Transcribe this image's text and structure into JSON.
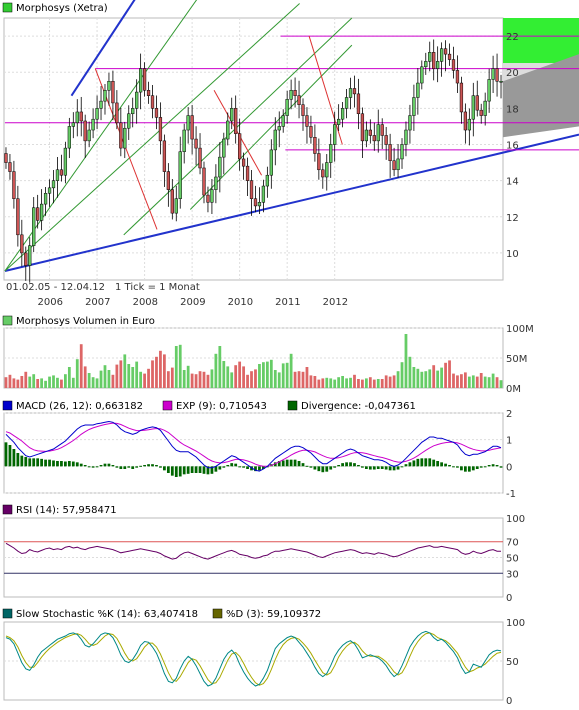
{
  "price_panel": {
    "title": "Morphosys (Xetra)",
    "legend_color": "#33cc33",
    "date_range": "01.02.05 - 12.04.12",
    "tick_note": "1 Tick = 1 Monat",
    "y_ticks": [
      10,
      12,
      14,
      16,
      18,
      20,
      22
    ],
    "x_labels": [
      "2006",
      "2007",
      "2008",
      "2009",
      "2010",
      "2011",
      "2012"
    ],
    "up_color": "#66cc66",
    "down_color": "#cc5555"
  },
  "volume_panel": {
    "title": "Morphosys Volumen in Euro",
    "y_ticks": [
      "100M",
      "50M",
      "0M"
    ]
  },
  "macd_panel": {
    "macd_label": "MACD (26, 12): 0,663182",
    "exp_label": "EXP (9): 0,710543",
    "div_label": "Divergence: -0,047361",
    "macd_color": "#0000cc",
    "exp_color": "#cc00cc",
    "div_color": "#006600",
    "y_ticks": [
      "2",
      "1",
      "0",
      "-1"
    ]
  },
  "rsi_panel": {
    "title": "RSI (14): 57,958471",
    "color": "#660066",
    "y_ticks": [
      "100",
      "70",
      "50",
      "30",
      "0"
    ]
  },
  "stoch_panel": {
    "k_label": "Slow Stochastic %K (14): 63,407418",
    "d_label": "%D (3): 59,109372",
    "k_color": "#006666",
    "d_color": "#666600",
    "y_ticks": [
      "100",
      "50",
      "0"
    ]
  },
  "chart_data": [
    {
      "type": "candlestick",
      "title": "Morphosys (Xetra)",
      "x_range": [
        "2005-02",
        "2012-04"
      ],
      "x_labels": [
        "2006",
        "2007",
        "2008",
        "2009",
        "2010",
        "2011",
        "2012"
      ],
      "ylim": [
        8.5,
        23
      ],
      "close": [
        15,
        14.5,
        13,
        11,
        10,
        9.3,
        10.4,
        12.5,
        11.8,
        12.7,
        13.3,
        13.6,
        14,
        14.6,
        14.3,
        15.8,
        17,
        17.2,
        17.8,
        17.3,
        16.2,
        16.8,
        17.4,
        18,
        18.4,
        19,
        19.5,
        18.3,
        17.2,
        15.8,
        16.9,
        17.7,
        18,
        18.9,
        20.2,
        19,
        18.7,
        18,
        17.5,
        16.2,
        14.5,
        13.5,
        12.2,
        13,
        15.6,
        16.8,
        17.6,
        16.3,
        15.8,
        14.7,
        13.2,
        12.8,
        13.5,
        14.2,
        15.3,
        16.3,
        17.3,
        18,
        16.6,
        15.2,
        14.8,
        14,
        13,
        12.6,
        12.8,
        13.7,
        14.3,
        15.7,
        16.8,
        17,
        17.6,
        18.5,
        19,
        18.7,
        18.2,
        17.6,
        17,
        16.4,
        15.5,
        14.6,
        14.2,
        15,
        16,
        17.1,
        17.4,
        18,
        18.6,
        19.1,
        18.8,
        17.7,
        16.2,
        16.8,
        16.5,
        16.2,
        17.1,
        16.5,
        16,
        15.1,
        14.6,
        15.2,
        16,
        16.8,
        17.6,
        18.6,
        19.4,
        20.3,
        20.6,
        21.1,
        20.2,
        20.6,
        21.3,
        21,
        20.7,
        20.1,
        19.4,
        17.8,
        16.8,
        17.4,
        18.7,
        17.9,
        17.6,
        18.4,
        19.6,
        20.2,
        19.5,
        19.5
      ],
      "lines": {
        "resistance_1": 22,
        "resistance_2": 20.2,
        "resistance_3": 17.2,
        "support_1": 15.7,
        "channel_upper": [
          [
            2006.5,
            18.7
          ],
          [
            2012.4,
            23.5
          ]
        ],
        "channel_lower": [
          [
            2005.1,
            9
          ],
          [
            2012.4,
            16.2
          ]
        ]
      }
    },
    {
      "type": "bar",
      "title": "Morphosys Volumen in Euro",
      "ylim": [
        0,
        100
      ],
      "unit": "M",
      "values": [
        18,
        22,
        16,
        14,
        20,
        27,
        19,
        23,
        15,
        16,
        12,
        19,
        21,
        17,
        14,
        23,
        35,
        17,
        48,
        73,
        36,
        25,
        18,
        16,
        29,
        38,
        30,
        22,
        39,
        46,
        56,
        40,
        35,
        44,
        27,
        24,
        32,
        46,
        52,
        62,
        56,
        28,
        34,
        70,
        72,
        30,
        37,
        24,
        23,
        28,
        27,
        22,
        31,
        57,
        70,
        45,
        36,
        26,
        38,
        44,
        36,
        22,
        28,
        31,
        40,
        43,
        44,
        47,
        30,
        26,
        41,
        42,
        57,
        27,
        28,
        27,
        35,
        21,
        20,
        14,
        16,
        17,
        16,
        14,
        18,
        20,
        16,
        17,
        22,
        15,
        14,
        16,
        18,
        14,
        15,
        15,
        21,
        19,
        21,
        28,
        43,
        90,
        52,
        35,
        32,
        27,
        28,
        31,
        38,
        29,
        34,
        42,
        46,
        24,
        21,
        23,
        26,
        19,
        21,
        19,
        25,
        19,
        18,
        24,
        18,
        13
      ]
    },
    {
      "type": "line",
      "title": "MACD (26, 12) / EXP (9) / Divergence",
      "ylim": [
        -1,
        2
      ],
      "series": [
        {
          "name": "MACD (26, 12)",
          "values": [
            1.2,
            1.05,
            0.9,
            0.7,
            0.55,
            0.4,
            0.35,
            0.4,
            0.45,
            0.5,
            0.55,
            0.6,
            0.65,
            0.75,
            0.85,
            0.95,
            1.1,
            1.25,
            1.4,
            1.5,
            1.55,
            1.55,
            1.55,
            1.6,
            1.62,
            1.65,
            1.68,
            1.65,
            1.55,
            1.4,
            1.3,
            1.25,
            1.2,
            1.25,
            1.35,
            1.4,
            1.45,
            1.48,
            1.45,
            1.35,
            1.15,
            0.95,
            0.75,
            0.6,
            0.55,
            0.55,
            0.55,
            0.45,
            0.35,
            0.2,
            0.05,
            -0.05,
            -0.05,
            0,
            0.1,
            0.2,
            0.3,
            0.4,
            0.35,
            0.25,
            0.15,
            0.05,
            -0.05,
            -0.15,
            -0.18,
            -0.1,
            0,
            0.15,
            0.3,
            0.4,
            0.5,
            0.6,
            0.7,
            0.75,
            0.75,
            0.7,
            0.6,
            0.5,
            0.35,
            0.2,
            0.1,
            0.1,
            0.2,
            0.3,
            0.4,
            0.5,
            0.6,
            0.65,
            0.6,
            0.5,
            0.4,
            0.35,
            0.3,
            0.25,
            0.25,
            0.22,
            0.15,
            0.05,
            0,
            0.05,
            0.15,
            0.3,
            0.45,
            0.6,
            0.75,
            0.9,
            1.0,
            1.1,
            1.1,
            1.05,
            1.05,
            1.0,
            0.95,
            0.9,
            0.8,
            0.6,
            0.45,
            0.4,
            0.45,
            0.45,
            0.5,
            0.55,
            0.65,
            0.75,
            0.75,
            0.7
          ]
        },
        {
          "name": "EXP (9)",
          "values": [
            1.3,
            1.25,
            1.15,
            1.05,
            0.95,
            0.82,
            0.7,
            0.62,
            0.58,
            0.57,
            0.56,
            0.57,
            0.6,
            0.64,
            0.7,
            0.78,
            0.87,
            0.97,
            1.08,
            1.2,
            1.3,
            1.38,
            1.44,
            1.49,
            1.53,
            1.57,
            1.6,
            1.62,
            1.61,
            1.57,
            1.5,
            1.43,
            1.38,
            1.34,
            1.34,
            1.35,
            1.37,
            1.4,
            1.42,
            1.41,
            1.35,
            1.27,
            1.15,
            1.02,
            0.9,
            0.8,
            0.73,
            0.65,
            0.57,
            0.48,
            0.38,
            0.28,
            0.2,
            0.15,
            0.13,
            0.14,
            0.17,
            0.22,
            0.26,
            0.26,
            0.24,
            0.2,
            0.15,
            0.08,
            0.03,
            0,
            0,
            0.04,
            0.1,
            0.17,
            0.25,
            0.33,
            0.42,
            0.5,
            0.56,
            0.6,
            0.6,
            0.58,
            0.54,
            0.47,
            0.4,
            0.34,
            0.3,
            0.3,
            0.32,
            0.36,
            0.41,
            0.47,
            0.51,
            0.52,
            0.51,
            0.48,
            0.44,
            0.4,
            0.36,
            0.33,
            0.29,
            0.24,
            0.19,
            0.16,
            0.16,
            0.19,
            0.24,
            0.31,
            0.4,
            0.5,
            0.6,
            0.69,
            0.77,
            0.82,
            0.86,
            0.89,
            0.9,
            0.9,
            0.88,
            0.83,
            0.76,
            0.69,
            0.64,
            0.6,
            0.58,
            0.58,
            0.6,
            0.64,
            0.67,
            0.7
          ]
        },
        {
          "name": "Divergence",
          "values": [
            0.9,
            0.8,
            0.65,
            0.5,
            0.4,
            0.35,
            0.3,
            0.3,
            0.3,
            0.28,
            0.25,
            0.25,
            0.22,
            0.2,
            0.2,
            0.18,
            0.2,
            0.18,
            0.15,
            0.1,
            0.05,
            0,
            -0.05,
            -0.02,
            0.05,
            0.1,
            0.1,
            0.05,
            -0.05,
            -0.1,
            -0.1,
            -0.05,
            -0.1,
            -0.05,
            0.02,
            0.05,
            0.08,
            0.08,
            0.05,
            -0.05,
            -0.15,
            -0.25,
            -0.35,
            -0.4,
            -0.38,
            -0.3,
            -0.28,
            -0.25,
            -0.25,
            -0.25,
            -0.28,
            -0.3,
            -0.28,
            -0.2,
            -0.12,
            -0.05,
            0.05,
            0.12,
            0.1,
            0,
            -0.05,
            -0.1,
            -0.15,
            -0.18,
            -0.15,
            -0.1,
            -0.02,
            0.08,
            0.15,
            0.2,
            0.22,
            0.25,
            0.25,
            0.25,
            0.2,
            0.12,
            0.02,
            -0.05,
            -0.12,
            -0.18,
            -0.22,
            -0.2,
            -0.12,
            -0.05,
            0.05,
            0.12,
            0.15,
            0.15,
            0.12,
            0.05,
            -0.05,
            -0.1,
            -0.12,
            -0.12,
            -0.1,
            -0.1,
            -0.12,
            -0.15,
            -0.15,
            -0.12,
            -0.02,
            0.08,
            0.15,
            0.22,
            0.28,
            0.3,
            0.3,
            0.3,
            0.25,
            0.2,
            0.15,
            0.1,
            0.05,
            0,
            -0.05,
            -0.15,
            -0.2,
            -0.2,
            -0.15,
            -0.1,
            -0.05,
            0,
            0.05,
            0.08,
            0.05,
            -0.05
          ]
        }
      ]
    },
    {
      "type": "line",
      "title": "RSI (14)",
      "ylim": [
        0,
        100
      ],
      "series": [
        {
          "name": "RSI (14)",
          "values": [
            68,
            65,
            62,
            58,
            55,
            56,
            60,
            58,
            57,
            59,
            61,
            62,
            60,
            61,
            60,
            63,
            64,
            62,
            63,
            61,
            60,
            62,
            63,
            64,
            63,
            62,
            61,
            60,
            58,
            56,
            57,
            58,
            59,
            60,
            61,
            60,
            59,
            58,
            57,
            55,
            52,
            50,
            48,
            49,
            53,
            56,
            57,
            55,
            53,
            51,
            49,
            48,
            50,
            52,
            54,
            56,
            58,
            59,
            57,
            54,
            53,
            52,
            50,
            49,
            50,
            52,
            53,
            56,
            58,
            58,
            59,
            60,
            61,
            60,
            59,
            58,
            57,
            55,
            53,
            51,
            50,
            52,
            54,
            56,
            57,
            58,
            59,
            60,
            59,
            57,
            55,
            56,
            55,
            54,
            56,
            55,
            54,
            52,
            51,
            52,
            54,
            56,
            58,
            60,
            62,
            63,
            64,
            65,
            63,
            63,
            64,
            63,
            62,
            61,
            60,
            56,
            54,
            55,
            58,
            56,
            55,
            57,
            59,
            60,
            58,
            58
          ]
        }
      ]
    },
    {
      "type": "line",
      "title": "Slow Stochastic",
      "ylim": [
        0,
        100
      ],
      "series": [
        {
          "name": "Slow Stochastic %K (14)",
          "values": [
            80,
            78,
            72,
            60,
            48,
            40,
            38,
            45,
            55,
            62,
            66,
            70,
            74,
            78,
            80,
            82,
            85,
            86,
            84,
            78,
            70,
            68,
            72,
            78,
            84,
            86,
            85,
            80,
            70,
            58,
            50,
            48,
            52,
            60,
            70,
            75,
            74,
            68,
            60,
            48,
            34,
            24,
            22,
            28,
            40,
            50,
            56,
            52,
            44,
            34,
            24,
            18,
            20,
            28,
            40,
            52,
            60,
            64,
            58,
            46,
            36,
            28,
            22,
            18,
            20,
            28,
            38,
            52,
            66,
            72,
            76,
            80,
            82,
            80,
            74,
            68,
            60,
            52,
            42,
            34,
            30,
            34,
            44,
            56,
            64,
            70,
            74,
            76,
            72,
            64,
            54,
            56,
            58,
            56,
            54,
            50,
            44,
            36,
            30,
            34,
            44,
            56,
            68,
            76,
            82,
            86,
            88,
            86,
            80,
            76,
            78,
            74,
            68,
            62,
            54,
            42,
            34,
            36,
            46,
            44,
            42,
            50,
            58,
            62,
            64,
            63
          ]
        },
        {
          "name": "%D (3)",
          "values": [
            82,
            80,
            76,
            68,
            57,
            48,
            42,
            42,
            48,
            55,
            61,
            66,
            70,
            74,
            77,
            80,
            82,
            84,
            85,
            83,
            78,
            72,
            70,
            72,
            77,
            82,
            85,
            84,
            79,
            70,
            60,
            52,
            50,
            53,
            60,
            68,
            73,
            73,
            68,
            59,
            47,
            35,
            26,
            24,
            30,
            39,
            48,
            53,
            51,
            44,
            35,
            26,
            21,
            22,
            29,
            40,
            51,
            59,
            61,
            56,
            47,
            37,
            29,
            22,
            19,
            21,
            28,
            39,
            52,
            63,
            71,
            76,
            79,
            80,
            78,
            73,
            67,
            60,
            51,
            43,
            35,
            32,
            35,
            44,
            55,
            63,
            69,
            73,
            74,
            70,
            63,
            58,
            56,
            56,
            56,
            53,
            49,
            43,
            36,
            32,
            35,
            44,
            56,
            67,
            75,
            81,
            85,
            86,
            84,
            80,
            78,
            76,
            72,
            66,
            60,
            51,
            42,
            36,
            38,
            41,
            43,
            46,
            51,
            56,
            60,
            61
          ]
        }
      ]
    }
  ]
}
